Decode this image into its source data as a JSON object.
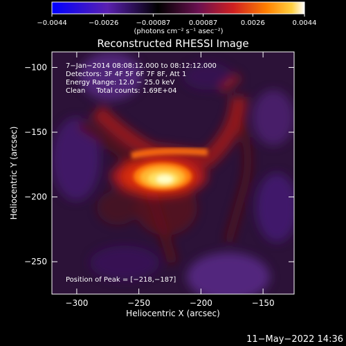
{
  "chart_data": {
    "type": "heatmap",
    "title": "Reconstructed RHESSI Image",
    "xlabel": "Heliocentric X (arcsec)",
    "ylabel": "Heliocentric Y (arcsec)",
    "xlim": [
      -320,
      -125
    ],
    "ylim": [
      -275,
      -88
    ],
    "xticks": [
      -300,
      -250,
      -200,
      -150
    ],
    "xtick_labels": [
      "−300",
      "−250",
      "−200",
      "−150"
    ],
    "yticks": [
      -100,
      -150,
      -200,
      -250
    ],
    "ytick_labels": [
      "−100",
      "−150",
      "−200",
      "−250"
    ],
    "colorbar": {
      "range": [
        -0.0044,
        0.0044
      ],
      "ticks": [
        -0.0044,
        -0.0026,
        -0.00087,
        0.00087,
        0.0026,
        0.0044
      ],
      "tick_labels": [
        "−0.0044",
        "−0.0026",
        "−0.00087",
        "0.00087",
        "0.0026",
        "0.0044"
      ],
      "unit_label": "(photons cm⁻² s⁻¹ asec⁻²)",
      "colors": [
        "#0000ff",
        "#5a20b0",
        "#000000",
        "#6a1050",
        "#d02020",
        "#ff8000",
        "#ffd040",
        "#ffffff"
      ]
    },
    "peak": [
      -218,
      -187
    ],
    "annotations": {
      "time": "7−Jan−2014 08:08:12.000 to 08:12:12.000",
      "detectors": "Detectors: 3F 4F 5F 6F 7F 8F, Att 1",
      "energy": "Energy Range: 12.0 − 25.0 keV",
      "clean": "Clean     Total counts: 1.69E+04",
      "peak": "Position of Peak = [−218,−187]"
    }
  },
  "timestamp": "11−May−2022 14:36"
}
